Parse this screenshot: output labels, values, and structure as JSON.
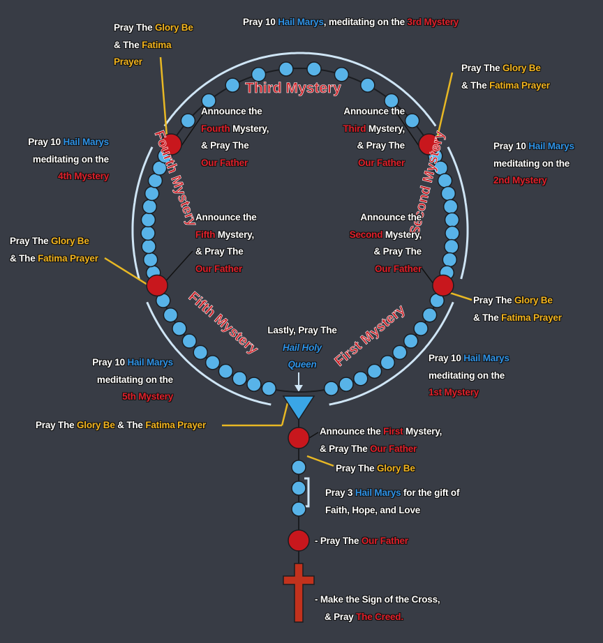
{
  "colors": {
    "background": "#383c45",
    "bead_blue": "#58b3e8",
    "bead_red": "#c8171d",
    "bracket": "#cfe5f5",
    "leader_gold": "#e8b824",
    "mystery_text": "#cc1f26",
    "glory_gold": "#f2b41e",
    "hail_blue": "#2e92e6",
    "cross_red": "#c2321d",
    "centerpiece": "#3aa6e6"
  },
  "icons": {
    "cross": "cross-icon",
    "centerpiece": "triangle-centerpiece-icon"
  },
  "mysteries": {
    "first": "First Mystery",
    "second": "Second Mystery",
    "third": "Third Mystery",
    "fourth": "Fourth Mystery",
    "fifth": "Fifth Mystery"
  },
  "common": {
    "pray_the": "Pray The",
    "glory_be": "Glory Be",
    "and_the": "& The",
    "fatima": "Fatima",
    "prayer": "Prayer",
    "fatima_prayer": "Fatima Prayer",
    "pray_10": "Pray 10",
    "hail_marys": "Hail Marys",
    "meditating_on_the": "meditating on the",
    "meditating_on_the_comma": "meditating on the",
    "announce_the": "Announce the",
    "mystery_comma": "Mystery,",
    "and_pray_the": "& Pray The",
    "our_father": "Our Father"
  },
  "labels": {
    "top": {
      "lead": "Pray 10",
      "hail": "Hail Marys",
      "mid": ", meditating on the",
      "ord": "3rd Mystery"
    },
    "fourth_glory": {
      "l1a": "Pray The",
      "l1b": "Glory Be",
      "l2a": "& The",
      "l2b": "Fatima",
      "l3": "Prayer"
    },
    "second_glory": {
      "l1a": "Pray The",
      "l1b": "Glory Be",
      "l2a": "& The",
      "l2b": "Fatima Prayer"
    },
    "fourth_hail": {
      "l1a": "Pray 10",
      "l1b": "Hail Marys",
      "l2": "meditating on the",
      "l3": "4th Mystery"
    },
    "second_hail": {
      "l1a": "Pray 10",
      "l1b": "Hail Marys",
      "l2": "meditating on the",
      "l3": "2nd Mystery"
    },
    "announce_fourth": {
      "l1": "Announce the",
      "l2a": "Fourth",
      "l2b": "Mystery,",
      "l3": "& Pray The",
      "l4": "Our Father"
    },
    "announce_third": {
      "l1": "Announce the",
      "l2a": "Third",
      "l2b": "Mystery,",
      "l3": "& Pray The",
      "l4": "Our Father"
    },
    "announce_fifth": {
      "l1": "Announce the",
      "l2a": "Fifth",
      "l2b": "Mystery,",
      "l3": "& Pray The",
      "l4": "Our Father"
    },
    "announce_second": {
      "l1": "Announce the",
      "l2a": "Second",
      "l2b": "Mystery,",
      "l3": "& Pray The",
      "l4": "Our Father"
    },
    "fifth_glory": {
      "l1a": "Pray The",
      "l1b": "Glory Be",
      "l2a": "& The",
      "l2b": "Fatima Prayer"
    },
    "first_glory": {
      "l1a": "Pray The",
      "l1b": "Glory Be",
      "l2a": "& The",
      "l2b": "Fatima Prayer"
    },
    "hail_holy": {
      "l1": "Lastly, Pray The",
      "l2": "Hail Holy",
      "l3": "Queen"
    },
    "fifth_hail": {
      "l1a": "Pray 10",
      "l1b": "Hail Marys",
      "l2": "meditating on the",
      "l3": "5th Mystery"
    },
    "first_hail": {
      "l1a": "Pray 10",
      "l1b": "Hail Marys",
      "l2": "meditating on the",
      "l3": "1st Mystery"
    },
    "bottom_glory": {
      "a": "Pray The",
      "b": "Glory Be",
      "c": "& The",
      "d": "Fatima Prayer"
    },
    "announce_first": {
      "l1a": "Announce the",
      "l1b": "First",
      "l1c": "Mystery,",
      "l2a": "& Pray The",
      "l2b": "Our Father"
    },
    "pendant_glory": {
      "a": "Pray The",
      "b": "Glory Be"
    },
    "three_hail": {
      "l1a": "Pray 3",
      "l1b": "Hail Marys",
      "l1c": "for the gift of",
      "l2": "Faith, Hope, and Love"
    },
    "pendant_father": {
      "a": "-  Pray The",
      "b": "Our Father"
    },
    "creed": {
      "l1": "-  Make the Sign of the Cross,",
      "l2a": "& Pray",
      "l2b": "The Creed."
    }
  }
}
